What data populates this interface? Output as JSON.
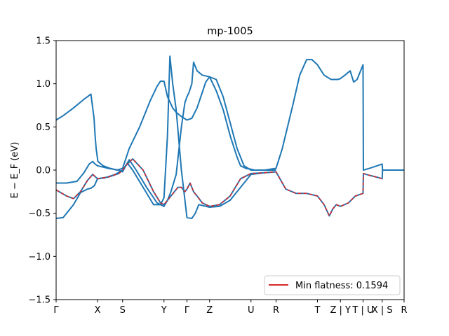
{
  "chart_data": {
    "type": "line",
    "title": "mp-1005",
    "xlabel": "",
    "ylabel": "E − E_F (eV)",
    "ylim": [
      -1.5,
      1.5
    ],
    "xlim": [
      0,
      10.0
    ],
    "y_ticks": [
      -1.5,
      -1.0,
      -0.5,
      0.0,
      0.5,
      1.0,
      1.5
    ],
    "y_tick_labels": [
      "−1.5",
      "−1.0",
      "−0.5",
      "0.0",
      "0.5",
      "1.0",
      "1.5"
    ],
    "x_ticks": [
      {
        "x": 0.0,
        "label": "Γ"
      },
      {
        "x": 1.19,
        "label": "X"
      },
      {
        "x": 1.91,
        "label": "S"
      },
      {
        "x": 3.1,
        "label": "Y"
      },
      {
        "x": 3.76,
        "label": "Γ"
      },
      {
        "x": 4.41,
        "label": "Z"
      },
      {
        "x": 5.6,
        "label": "U"
      },
      {
        "x": 6.32,
        "label": "R"
      },
      {
        "x": 7.51,
        "label": "T"
      },
      {
        "x": 8.17,
        "label": "Z | Y"
      },
      {
        "x": 8.82,
        "label": "T | U"
      },
      {
        "x": 9.37,
        "label": "X | S"
      },
      {
        "x": 10.0,
        "label": "R"
      }
    ],
    "grid": false,
    "legend_position": "bottom-right",
    "legend": [
      {
        "label": "Min flatness: 0.1594",
        "color": "#d62728"
      }
    ],
    "series": [
      {
        "color": "#1f77b4",
        "x": [
          0,
          0.2,
          0.5,
          0.8,
          0.9,
          1.0,
          1.09,
          1.12,
          1.15,
          1.2,
          1.35,
          1.55,
          1.75,
          1.91,
          2.1,
          2.4,
          2.7,
          2.9,
          3.0,
          3.1,
          3.2,
          3.35,
          3.45,
          3.6,
          3.76,
          3.9,
          4.05,
          4.2,
          4.3,
          4.41,
          4.6,
          4.8,
          5.0,
          5.2,
          5.4,
          5.6,
          5.7,
          5.85,
          6.0,
          6.15,
          6.32,
          6.5,
          6.8,
          7.0,
          7.2,
          7.35,
          7.51,
          7.7,
          7.9,
          8.1,
          8.17,
          8.3,
          8.45,
          8.55,
          8.65,
          8.82,
          8.83,
          9.0,
          9.15,
          9.3,
          9.37,
          9.38,
          9.6,
          9.8,
          10.0
        ],
        "y": [
          0.58,
          0.63,
          0.72,
          0.82,
          0.85,
          0.88,
          0.6,
          0.4,
          0.25,
          0.1,
          0.05,
          0.02,
          0.0,
          0.02,
          0.25,
          0.5,
          0.8,
          0.97,
          1.03,
          1.03,
          0.85,
          0.72,
          0.67,
          0.62,
          0.58,
          0.6,
          0.72,
          0.9,
          1.02,
          1.08,
          1.05,
          0.85,
          0.55,
          0.25,
          0.05,
          0.0,
          0.0,
          0.0,
          0.0,
          0.01,
          0.02,
          0.25,
          0.75,
          1.1,
          1.28,
          1.28,
          1.22,
          1.1,
          1.05,
          1.05,
          1.06,
          1.1,
          1.15,
          1.02,
          1.05,
          1.22,
          0.0,
          0.02,
          0.04,
          0.06,
          0.07,
          0.0,
          0.0,
          0.0,
          0.0
        ]
      },
      {
        "color": "#1f77b4",
        "x": [
          0,
          0.2,
          0.5,
          0.7,
          0.9,
          1.0,
          1.1,
          1.19,
          1.4,
          1.7,
          1.91,
          2.05,
          2.2,
          2.5,
          2.8,
          3.0,
          3.1,
          3.2,
          3.27,
          3.35,
          3.45,
          3.6,
          3.76,
          3.9,
          4.0,
          4.1,
          4.41,
          4.7,
          5.0,
          5.3,
          5.6,
          6.0,
          6.32,
          6.6,
          6.9,
          7.2,
          7.51,
          7.7,
          7.85,
          7.95,
          8.05,
          8.17,
          8.4,
          8.6,
          8.82,
          8.83,
          9.0,
          9.2,
          9.37,
          9.38,
          9.7,
          10.0
        ],
        "y": [
          -0.56,
          -0.55,
          -0.4,
          -0.26,
          -0.22,
          -0.21,
          -0.18,
          -0.1,
          -0.09,
          -0.05,
          0.0,
          0.08,
          0.0,
          -0.2,
          -0.4,
          -0.4,
          -0.32,
          0.4,
          1.32,
          1.0,
          0.7,
          0.0,
          -0.55,
          -0.56,
          -0.5,
          -0.4,
          -0.43,
          -0.42,
          -0.35,
          -0.2,
          -0.05,
          -0.03,
          -0.02,
          -0.22,
          -0.27,
          -0.27,
          -0.3,
          -0.4,
          -0.53,
          -0.45,
          -0.4,
          -0.42,
          -0.38,
          -0.3,
          -0.27,
          -0.04,
          -0.06,
          -0.08,
          -0.1,
          0.0,
          0.0,
          0.0
        ]
      },
      {
        "color": "#1f77b4",
        "x": [
          0,
          0.3,
          0.6,
          0.8,
          0.95,
          1.05,
          1.12,
          1.19,
          1.5,
          1.8,
          1.91,
          2.0,
          2.1,
          2.3,
          2.6,
          2.9,
          3.1,
          3.2,
          3.3,
          3.45,
          3.6,
          3.7,
          3.76,
          3.82,
          3.9,
          3.95,
          4.05,
          4.2,
          4.41,
          4.6,
          4.8,
          5.0,
          5.2,
          5.3,
          5.45,
          5.6,
          5.7,
          6.32
        ],
        "y": [
          -0.15,
          -0.15,
          -0.13,
          -0.03,
          0.07,
          0.1,
          0.07,
          0.05,
          0.02,
          0.0,
          -0.02,
          0.05,
          0.12,
          0.0,
          -0.2,
          -0.38,
          -0.42,
          -0.35,
          -0.25,
          -0.05,
          0.5,
          0.78,
          0.85,
          0.9,
          1.0,
          1.25,
          1.15,
          1.1,
          1.08,
          0.92,
          0.7,
          0.4,
          0.15,
          0.05,
          0.02,
          0.01,
          0.0,
          0.0
        ]
      },
      {
        "color": "#1f77b4",
        "x": [
          0,
          0.3,
          0.5,
          0.7,
          0.9,
          1.05,
          1.19,
          1.5,
          1.8,
          1.91,
          2.0,
          2.2,
          2.5,
          2.8,
          3.0,
          3.1,
          3.3,
          3.5,
          3.6,
          3.7,
          3.76,
          3.85,
          3.95,
          4.05,
          4.2,
          4.41,
          4.7,
          5.0,
          5.3,
          5.6,
          6.0,
          6.32
        ],
        "y": [
          -0.23,
          -0.3,
          -0.33,
          -0.25,
          -0.12,
          -0.05,
          -0.1,
          -0.08,
          -0.04,
          0.0,
          0.05,
          0.13,
          0.0,
          -0.25,
          -0.38,
          -0.4,
          -0.3,
          -0.2,
          -0.2,
          -0.25,
          -0.22,
          -0.15,
          -0.25,
          -0.3,
          -0.38,
          -0.42,
          -0.4,
          -0.3,
          -0.1,
          -0.04,
          -0.03,
          -0.02
        ]
      },
      {
        "color": "#d62728",
        "dashed": true,
        "x": [
          0,
          0.3,
          0.5,
          0.7,
          0.9,
          1.05,
          1.19,
          1.5,
          1.8,
          1.91,
          2.0,
          2.2,
          2.5,
          2.8,
          3.0,
          3.1,
          3.3,
          3.5,
          3.6,
          3.7,
          3.76,
          3.85,
          3.95,
          4.05,
          4.2,
          4.41,
          4.7,
          5.0,
          5.3,
          5.6,
          6.0,
          6.32,
          6.6,
          6.9,
          7.2,
          7.51,
          7.7,
          7.85,
          7.95,
          8.05,
          8.17,
          8.4,
          8.6,
          8.82,
          8.83,
          9.0,
          9.2,
          9.37
        ],
        "y": [
          -0.23,
          -0.3,
          -0.33,
          -0.25,
          -0.12,
          -0.05,
          -0.1,
          -0.08,
          -0.04,
          0.0,
          0.05,
          0.13,
          0.0,
          -0.25,
          -0.38,
          -0.4,
          -0.3,
          -0.2,
          -0.2,
          -0.25,
          -0.22,
          -0.15,
          -0.25,
          -0.3,
          -0.38,
          -0.42,
          -0.4,
          -0.3,
          -0.1,
          -0.04,
          -0.03,
          -0.02,
          -0.22,
          -0.27,
          -0.27,
          -0.3,
          -0.4,
          -0.53,
          -0.45,
          -0.4,
          -0.42,
          -0.38,
          -0.3,
          -0.27,
          -0.04,
          -0.06,
          -0.08,
          -0.1
        ]
      }
    ]
  }
}
